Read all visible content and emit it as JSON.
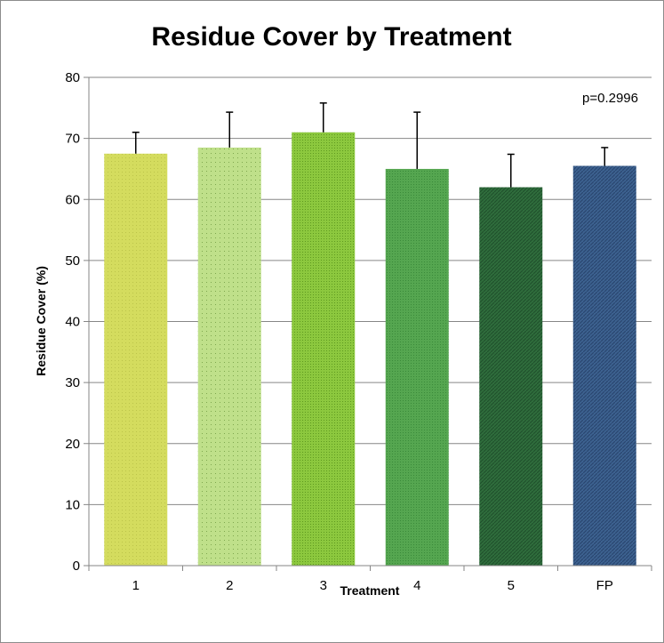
{
  "chart_data": {
    "type": "bar",
    "title": "Residue Cover by Treatment",
    "xlabel": "Treatment",
    "ylabel": "Residue Cover (%)",
    "categories": [
      "1",
      "2",
      "3",
      "4",
      "5",
      "FP"
    ],
    "values": [
      67.5,
      68.5,
      71,
      65,
      62,
      65.5
    ],
    "error_upper": [
      3.5,
      5.8,
      4.8,
      9.3,
      5.4,
      3.0
    ],
    "ylim": [
      0,
      80
    ],
    "yticks": [
      "0",
      "10",
      "20",
      "30",
      "40",
      "50",
      "60",
      "70",
      "80"
    ],
    "grid": true,
    "legend": "none",
    "annotation": "p=0.2996",
    "bar_colors": [
      "#d4dc5e",
      "#b2d97a",
      "#86c23a",
      "#4ea04a",
      "#2d6a3a",
      "#3a5f8c"
    ]
  }
}
